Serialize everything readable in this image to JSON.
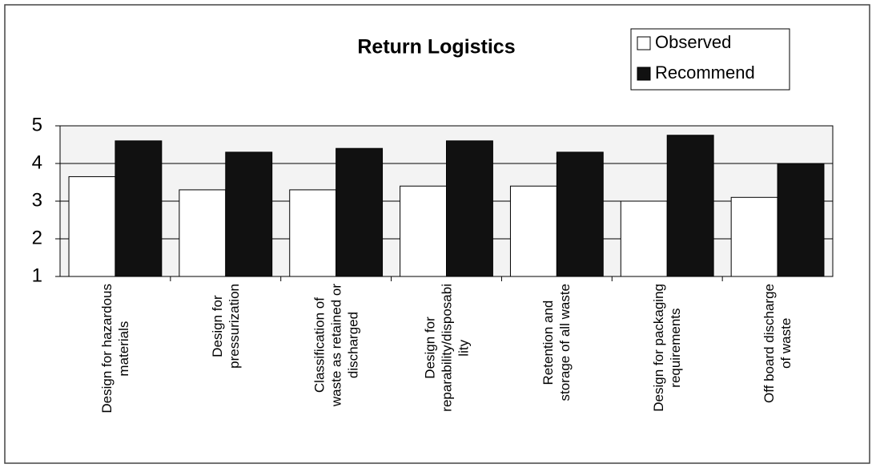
{
  "chart_data": {
    "type": "bar",
    "title": "Return Logistics",
    "categories": [
      "Design for hazardous\nmaterials",
      "Design for\npressurization",
      "Classification of\nwaste as retained or\ndischarged",
      "Design for\nreparability/disposabi\nlity",
      "Retention and\nstorage of all waste",
      "Design for packaging\nrequirements",
      "Off board discharge\nof waste"
    ],
    "series": [
      {
        "name": "Observed",
        "color": "#ffffff",
        "values": [
          3.65,
          3.3,
          3.3,
          3.4,
          3.4,
          3.0,
          3.1
        ]
      },
      {
        "name": "Recommend",
        "color": "#111111",
        "values": [
          4.6,
          4.3,
          4.4,
          4.6,
          4.3,
          4.75,
          4.0
        ]
      }
    ],
    "ylim": [
      1,
      5
    ],
    "yticks": [
      1,
      2,
      3,
      4,
      5
    ],
    "grid": true,
    "legend": "top-right"
  }
}
